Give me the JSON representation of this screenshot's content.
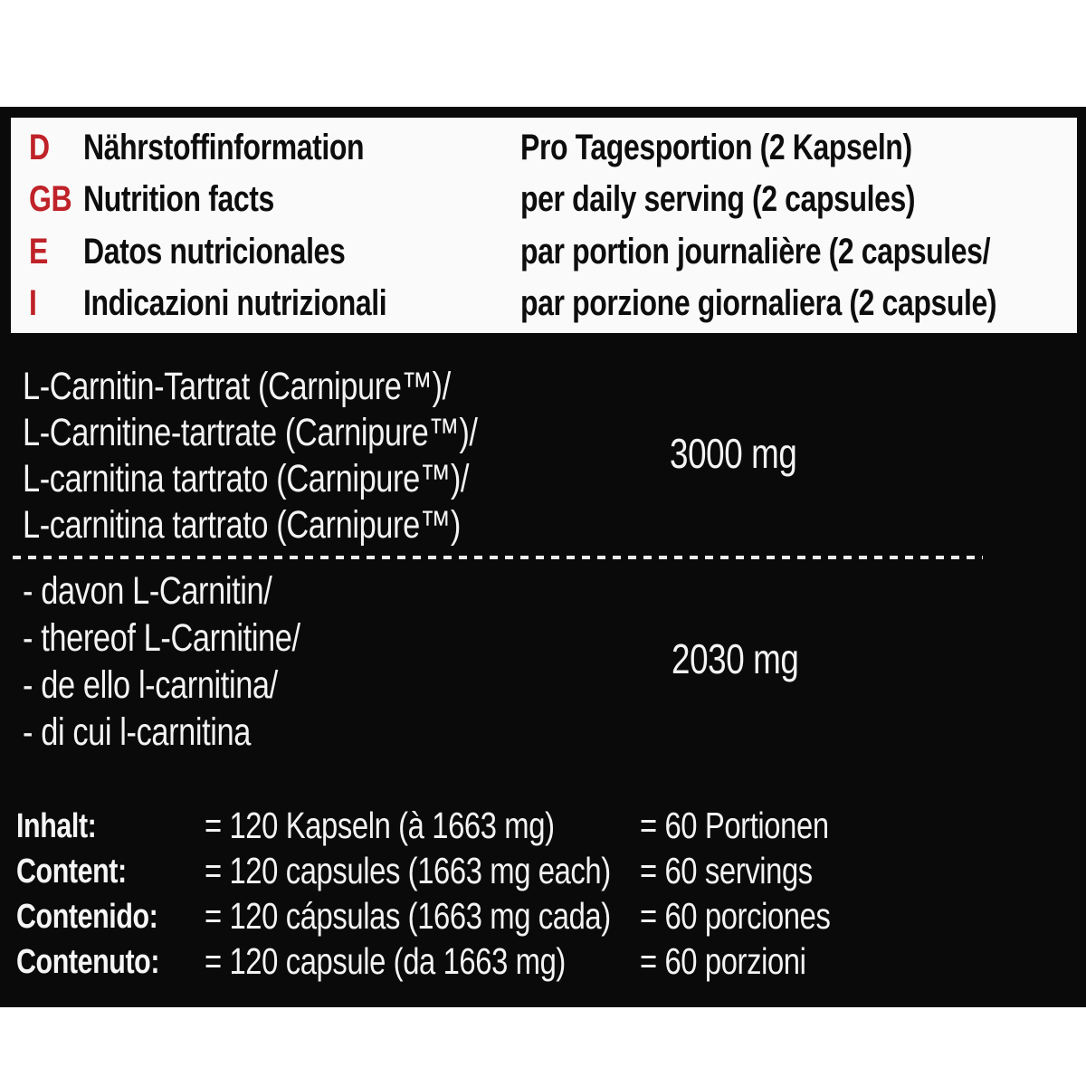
{
  "colors": {
    "page_bg": "#ffffff",
    "panel_bg": "#0a0a0a",
    "header_bg": "#fafafa",
    "accent_red": "#bf2228",
    "text_dark": "#0d0d0d",
    "text_light": "#f3f3f3"
  },
  "header": {
    "rows": [
      {
        "code": "D",
        "label": "Nährstoffinformation",
        "serving": "Pro Tagesportion (2 Kapseln)"
      },
      {
        "code": "GB",
        "label": "Nutrition facts",
        "serving": "per daily serving  (2 capsules)"
      },
      {
        "code": "E",
        "label": "Datos nutricionales",
        "serving": "par portion  journalière  (2 capsules/"
      },
      {
        "code": "I",
        "label": "Indicazioni nutrizionali",
        "serving": "par porzione giornaliera (2 capsule)"
      }
    ]
  },
  "ingredient": {
    "lines": [
      "L-Carnitin-Tartrat (Carnipure™)/",
      "L-Carnitine-tartrate (Carnipure™)/",
      "L-carnitina tartrato (Carnipure™)/",
      "L-carnitina tartrato (Carnipure™)"
    ],
    "amount": "3000 mg"
  },
  "thereof": {
    "lines": [
      "- davon L-Carnitin/",
      "- thereof L-Carnitine/",
      "- de ello l-carnitina/",
      "- di cui l-carnitina"
    ],
    "amount": "2030 mg"
  },
  "contents": {
    "rows": [
      {
        "label": "Inhalt:",
        "capsules": "= 120 Kapseln (à 1663 mg)",
        "servings": "= 60 Portionen"
      },
      {
        "label": "Content:",
        "capsules": "= 120 capsules (1663 mg each)",
        "servings": "= 60 servings"
      },
      {
        "label": "Contenido:",
        "capsules": "= 120 cápsulas (1663 mg cada)",
        "servings": "= 60 porciones"
      },
      {
        "label": "Contenuto:",
        "capsules": "= 120  capsule (da 1663 mg)",
        "servings": "= 60 porzioni"
      }
    ]
  }
}
